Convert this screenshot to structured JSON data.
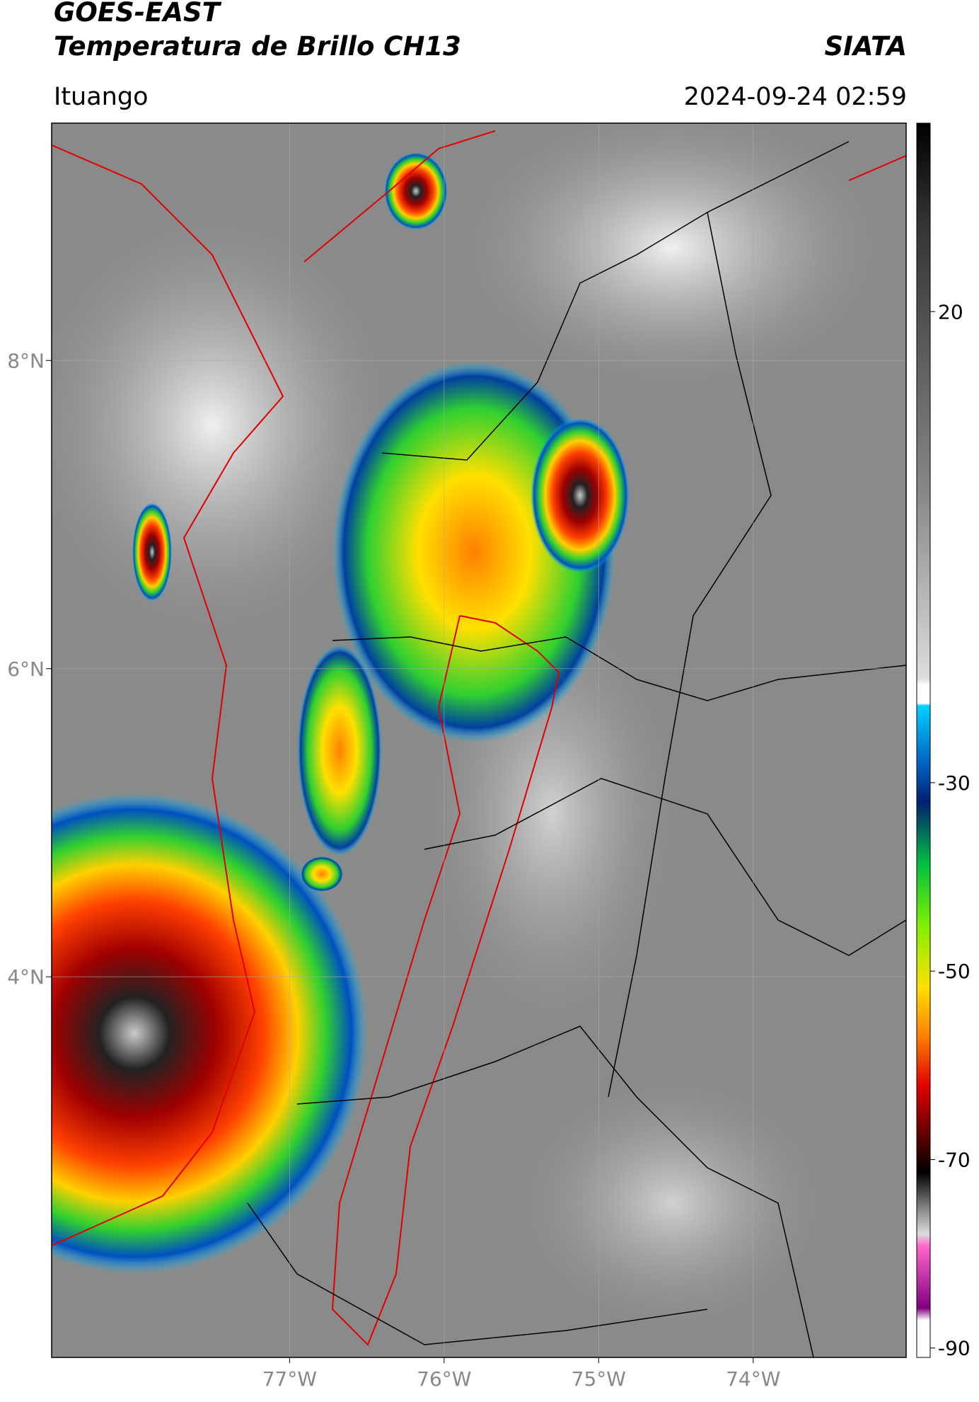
{
  "header": {
    "title_line1": "GOES-EAST",
    "title_line2": "Temperatura de Brillo CH13",
    "brand": "SIATA",
    "location": "Ituango",
    "datetime": "2024-09-24 02:59"
  },
  "map": {
    "lonlim": [
      -78.54,
      -73.01
    ],
    "latlim": [
      1.53,
      9.54
    ],
    "lonticks": [
      {
        "value": -77,
        "label": "77°W"
      },
      {
        "value": -76,
        "label": "76°W"
      },
      {
        "value": -75,
        "label": "75°W"
      },
      {
        "value": -74,
        "label": "74°W"
      }
    ],
    "latticks": [
      {
        "value": 8,
        "label": "8°N"
      },
      {
        "value": 6,
        "label": "6°N"
      },
      {
        "value": 4,
        "label": "4°N"
      }
    ]
  },
  "colorbar": {
    "lim": [
      -91,
      40
    ],
    "ticks": [
      20,
      -30,
      -50,
      -70,
      -90
    ]
  }
}
